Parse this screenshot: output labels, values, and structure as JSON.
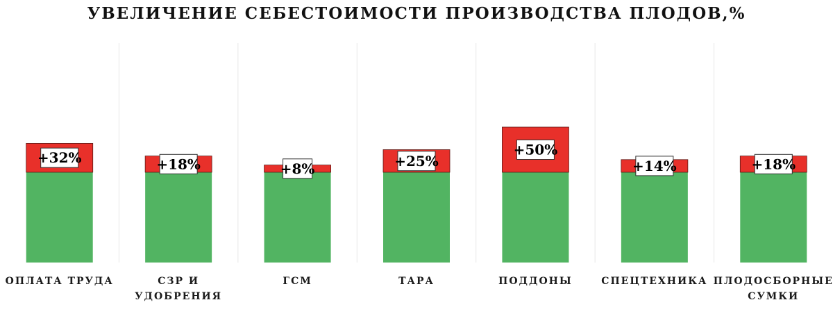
{
  "chart_data": {
    "type": "bar",
    "stacked": true,
    "title": "УВЕЛИЧЕНИЕ СЕБЕСТОИМОСТИ ПРОИЗВОДСТВА ПЛОДОВ,%",
    "categories": [
      [
        "ОПЛАТА ТРУДА"
      ],
      [
        "СЗР И",
        "УДОБРЕНИЯ"
      ],
      [
        "ГСМ"
      ],
      [
        "ТАРА"
      ],
      [
        "ПОДДОНЫ"
      ],
      [
        "СПЕЦТЕХНИКА"
      ],
      [
        "ПЛОДОСБОРНЫЕ",
        "СУМКИ"
      ]
    ],
    "base_percent": 100,
    "series": [
      {
        "values": [
          100,
          100,
          100,
          100,
          100,
          100,
          100
        ],
        "color": "#52b462"
      },
      {
        "values": [
          32,
          18,
          8,
          25,
          50,
          14,
          18
        ],
        "color": "#e8302a"
      }
    ],
    "data_labels": [
      "+32%",
      "+18%",
      "+8%",
      "+25%",
      "+50%",
      "+14%",
      "+18%"
    ],
    "ylim": [
      0,
      175
    ],
    "grid": "vertical separators",
    "legend": "none"
  }
}
